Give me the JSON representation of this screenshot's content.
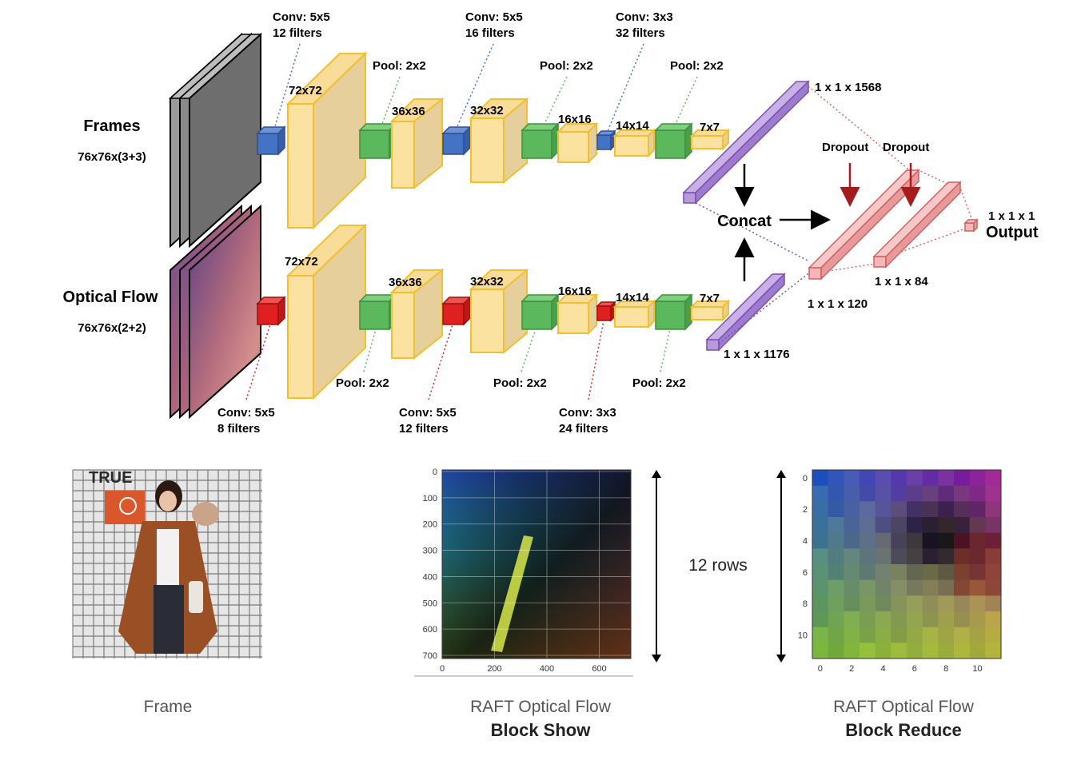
{
  "top_stream": {
    "title": "Frames",
    "input_size": "76x76x(3+3)",
    "sizes": [
      "72x72",
      "36x36",
      "32x32",
      "16x16",
      "14x14",
      "7x7"
    ],
    "conv1": [
      "Conv: 5x5",
      "12 filters"
    ],
    "pool1": "Pool: 2x2",
    "conv2": [
      "Conv: 5x5",
      "16 filters"
    ],
    "pool2": "Pool: 2x2",
    "conv3": [
      "Conv: 3x3",
      "32 filters"
    ],
    "pool3": "Pool: 2x2",
    "fc": "1 x 1 x 1568"
  },
  "bottom_stream": {
    "title": "Optical Flow",
    "input_size": "76x76x(2+2)",
    "sizes": [
      "72x72",
      "36x36",
      "32x32",
      "16x16",
      "14x14",
      "7x7"
    ],
    "conv1": [
      "Conv: 5x5",
      "8 filters"
    ],
    "pool1": "Pool: 2x2",
    "conv2": [
      "Conv: 5x5",
      "12 filters"
    ],
    "pool2": "Pool: 2x2",
    "conv3": [
      "Conv: 3x3",
      "24 filters"
    ],
    "pool3": "Pool: 2x2",
    "fc": "1 x 1 x 1176"
  },
  "head": {
    "concat": "Concat",
    "dropout1": "Dropout",
    "dropout2": "Dropout",
    "fc1": "1 x 1 x 120",
    "fc2": "1 x 1 x 84",
    "output_size": "1 x 1 x 1",
    "output": "Output"
  },
  "panels": {
    "frame_caption": "Frame",
    "raft_show_line1": "RAFT Optical Flow",
    "raft_show_line2": "Block Show",
    "raft_reduce_line1": "RAFT Optical Flow",
    "raft_reduce_line2": "Block Reduce",
    "rows_label": "12 rows",
    "frame_sign": "TRUE",
    "show_yticks": [
      "0",
      "100",
      "200",
      "300",
      "400",
      "500",
      "600",
      "700"
    ],
    "show_xticks": [
      "0",
      "200",
      "400",
      "600"
    ],
    "reduce_yticks": [
      "0",
      "2",
      "4",
      "6",
      "8",
      "10"
    ],
    "reduce_xticks": [
      "0",
      "2",
      "4",
      "6",
      "8",
      "10"
    ]
  },
  "colors": {
    "conv_top": "#4472c4",
    "conv_bottom": "#e02020",
    "feature_map": "#fbe2a0",
    "pool": "#5cb85c",
    "fc_stream": "#b79ad9",
    "fc_head": "#f4b6b6",
    "dropout_arrow": "#a61c1c"
  }
}
